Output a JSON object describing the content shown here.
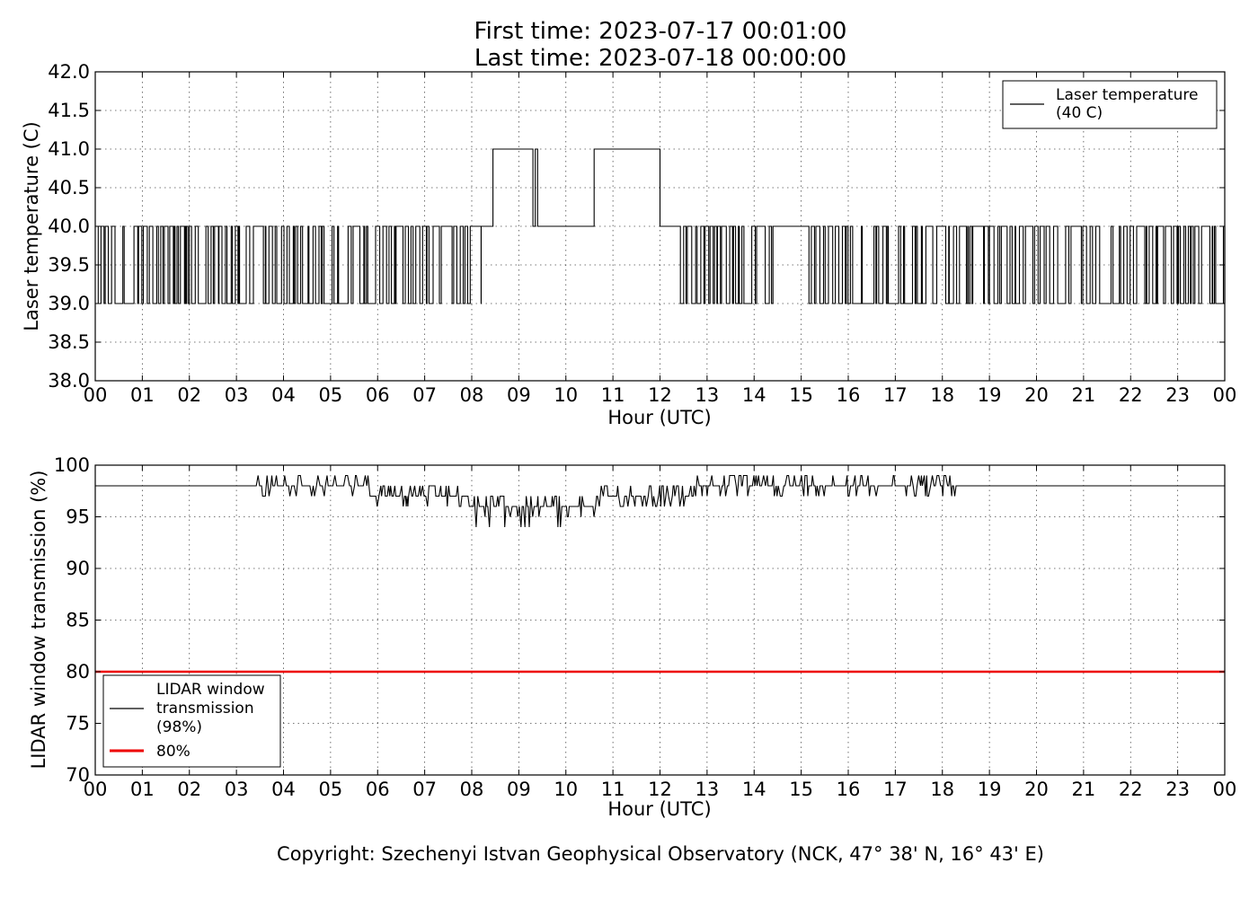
{
  "title": {
    "line1": "First time: 2023-07-17 00:01:00",
    "line2": "Last time: 2023-07-18 00:00:00"
  },
  "copyright": "Copyright: Szechenyi Istvan Geophysical Observatory (NCK, 47° 38' N, 16° 43' E)",
  "colors": {
    "series": "#000000",
    "threshold": "#ee0000",
    "frame": "#000000"
  },
  "chart_data": [
    {
      "type": "line",
      "ylabel": "Laser temperature (C)",
      "xlabel": "Hour (UTC)",
      "xlim": [
        0,
        24
      ],
      "ylim": [
        38.0,
        42.0
      ],
      "yticks": [
        "38.0",
        "38.5",
        "39.0",
        "39.5",
        "40.0",
        "40.5",
        "41.0",
        "41.5",
        "42.0"
      ],
      "xticks": [
        "00",
        "01",
        "02",
        "03",
        "04",
        "05",
        "06",
        "07",
        "08",
        "09",
        "10",
        "11",
        "12",
        "13",
        "14",
        "15",
        "16",
        "17",
        "18",
        "19",
        "20",
        "21",
        "22",
        "23",
        "00"
      ],
      "grid": true,
      "legend_position": "top-right",
      "series": [
        {
          "name": "Laser temperature (40 C)",
          "legend_lines": [
            "Laser temperature",
            "(40 C)"
          ],
          "color": "#000000",
          "segments": [
            {
              "x0": 0.0,
              "x1": 8.2,
              "mode": "toggle",
              "levels": [
                39,
                40
              ]
            },
            {
              "x0": 8.2,
              "x1": 8.45,
              "mode": "flat",
              "level": 40
            },
            {
              "x0": 8.45,
              "x1": 9.3,
              "mode": "flat",
              "level": 41
            },
            {
              "x0": 9.3,
              "x1": 9.35,
              "mode": "flat",
              "level": 40
            },
            {
              "x0": 9.35,
              "x1": 9.4,
              "mode": "flat",
              "level": 41
            },
            {
              "x0": 9.4,
              "x1": 10.6,
              "mode": "flat",
              "level": 40
            },
            {
              "x0": 10.6,
              "x1": 12.0,
              "mode": "flat",
              "level": 41
            },
            {
              "x0": 12.0,
              "x1": 12.4,
              "mode": "flat",
              "level": 40
            },
            {
              "x0": 12.4,
              "x1": 13.95,
              "mode": "toggle",
              "levels": [
                39,
                40
              ]
            },
            {
              "x0": 13.95,
              "x1": 14.4,
              "mode": "toggle",
              "levels": [
                39,
                40
              ]
            },
            {
              "x0": 14.4,
              "x1": 15.1,
              "mode": "flat",
              "level": 40
            },
            {
              "x0": 15.1,
              "x1": 24.0,
              "mode": "toggle",
              "levels": [
                39,
                40
              ]
            }
          ]
        }
      ]
    },
    {
      "type": "line",
      "ylabel": "LIDAR window transmission (%)",
      "xlabel": "Hour (UTC)",
      "xlim": [
        0,
        24
      ],
      "ylim": [
        70,
        100
      ],
      "yticks": [
        "70",
        "75",
        "80",
        "85",
        "90",
        "95",
        "100"
      ],
      "xticks": [
        "00",
        "01",
        "02",
        "03",
        "04",
        "05",
        "06",
        "07",
        "08",
        "09",
        "10",
        "11",
        "12",
        "13",
        "14",
        "15",
        "16",
        "17",
        "18",
        "19",
        "20",
        "21",
        "22",
        "23",
        "00"
      ],
      "grid": true,
      "legend_position": "bottom-left",
      "series": [
        {
          "name": "LIDAR window transmission (98%)",
          "legend_lines": [
            "LIDAR window",
            "transmission",
            "(98%)"
          ],
          "color": "#000000",
          "baseline": 98,
          "noisy_from": 3.35,
          "noisy_to": 18.3,
          "dip_center_hour": 9.3,
          "dip_min": 94
        },
        {
          "name": "80%",
          "legend_lines": [
            "80%"
          ],
          "color": "#ee0000",
          "constant": 80
        }
      ]
    }
  ]
}
